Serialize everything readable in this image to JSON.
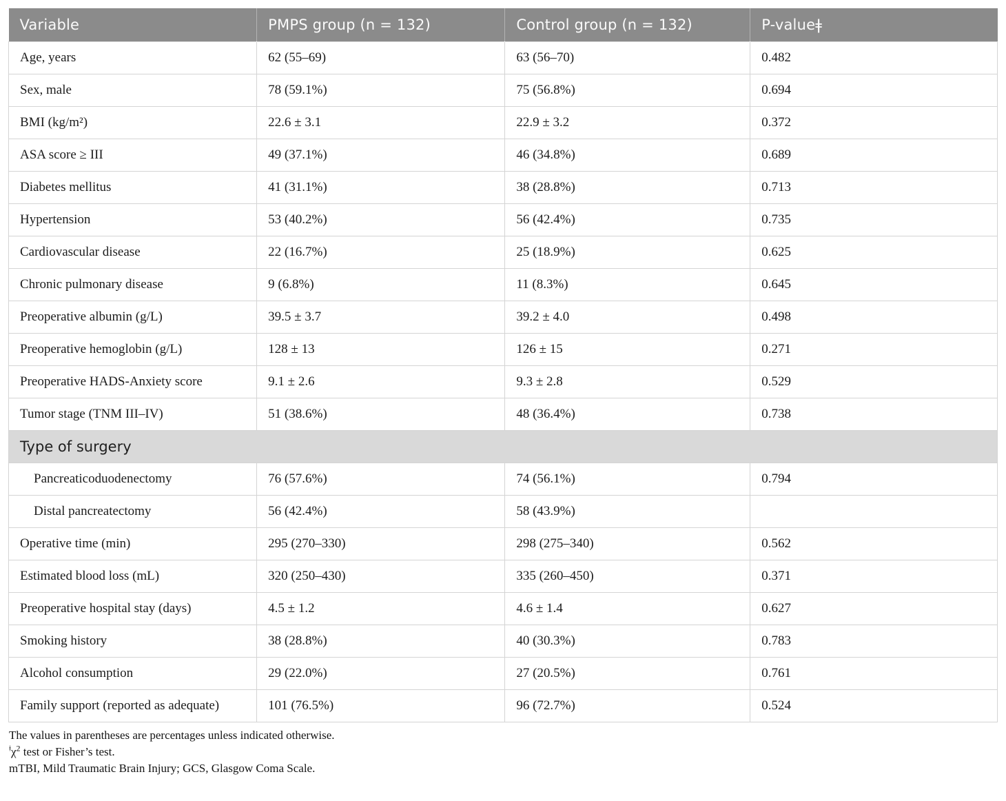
{
  "colors": {
    "header_bg": "#8b8b8b",
    "header_text": "#fafafa",
    "section_bg": "#d9d9d9",
    "border": "#d4d4d4",
    "body_text": "#1c1c1c"
  },
  "table": {
    "columns": [
      "Variable",
      "PMPS group (n = 132)",
      "Control group (n = 132)",
      "P-valueǂ"
    ],
    "rows_top": [
      {
        "label": "Age, years",
        "pmps": "62 (55–69)",
        "control": "63 (56–70)",
        "p": "0.482"
      },
      {
        "label": "Sex, male",
        "pmps": "78 (59.1%)",
        "control": "75 (56.8%)",
        "p": "0.694"
      },
      {
        "label": "BMI (kg/m²)",
        "pmps": "22.6 ± 3.1",
        "control": "22.9 ± 3.2",
        "p": "0.372"
      },
      {
        "label": "ASA score ≥ III",
        "pmps": "49 (37.1%)",
        "control": "46 (34.8%)",
        "p": "0.689"
      },
      {
        "label": "Diabetes mellitus",
        "pmps": "41 (31.1%)",
        "control": "38 (28.8%)",
        "p": "0.713"
      },
      {
        "label": "Hypertension",
        "pmps": "53 (40.2%)",
        "control": "56 (42.4%)",
        "p": "0.735"
      },
      {
        "label": "Cardiovascular disease",
        "pmps": "22 (16.7%)",
        "control": "25 (18.9%)",
        "p": "0.625"
      },
      {
        "label": "Chronic pulmonary disease",
        "pmps": "9 (6.8%)",
        "control": "11 (8.3%)",
        "p": "0.645"
      },
      {
        "label": "Preoperative albumin (g/L)",
        "pmps": "39.5 ± 3.7",
        "control": "39.2 ± 4.0",
        "p": "0.498"
      },
      {
        "label": "Preoperative hemoglobin (g/L)",
        "pmps": "128 ± 13",
        "control": "126 ± 15",
        "p": "0.271"
      },
      {
        "label": "Preoperative HADS-Anxiety score",
        "pmps": "9.1 ± 2.6",
        "control": "9.3 ± 2.8",
        "p": "0.529"
      },
      {
        "label": "Tumor stage (TNM III–IV)",
        "pmps": "51 (38.6%)",
        "control": "48 (36.4%)",
        "p": "0.738"
      }
    ],
    "section_label": "Type of surgery",
    "rows_surgery": [
      {
        "label": "Pancreaticoduodenectomy",
        "pmps": "76 (57.6%)",
        "control": "74 (56.1%)",
        "p": "0.794"
      },
      {
        "label": "Distal pancreatectomy",
        "pmps": "56 (42.4%)",
        "control": "58 (43.9%)",
        "p": ""
      }
    ],
    "rows_bottom": [
      {
        "label": "Operative time (min)",
        "pmps": "295 (270–330)",
        "control": "298 (275–340)",
        "p": "0.562"
      },
      {
        "label": "Estimated blood loss (mL)",
        "pmps": "320 (250–430)",
        "control": "335 (260–450)",
        "p": "0.371"
      },
      {
        "label": "Preoperative hospital stay (days)",
        "pmps": "4.5 ± 1.2",
        "control": "4.6 ± 1.4",
        "p": "0.627"
      },
      {
        "label": "Smoking history",
        "pmps": "38 (28.8%)",
        "control": "40 (30.3%)",
        "p": "0.783"
      },
      {
        "label": "Alcohol consumption",
        "pmps": "29 (22.0%)",
        "control": "27 (20.5%)",
        "p": "0.761"
      },
      {
        "label": "Family support (reported as adequate)",
        "pmps": "101 (76.5%)",
        "control": "96 (72.7%)",
        "p": "0.524"
      }
    ]
  },
  "footnotes": {
    "line1": "The values in parentheses are percentages unless indicated otherwise.",
    "line2_symbol": "ǂ",
    "line2_chi": "χ",
    "line2_sup": "2",
    "line2_text": " test or Fisher’s test.",
    "line3": "mTBI, Mild Traumatic Brain Injury; GCS, Glasgow Coma Scale."
  }
}
